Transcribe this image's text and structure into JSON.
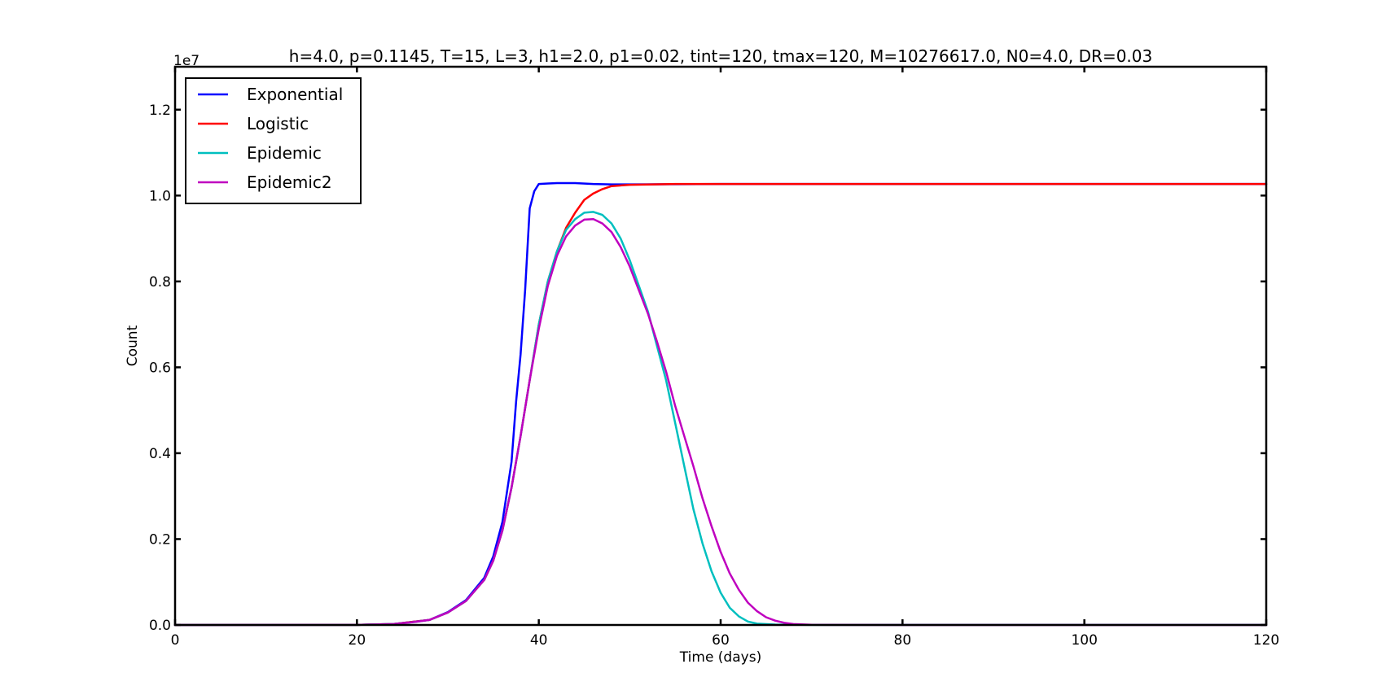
{
  "chart_data": {
    "type": "line",
    "title": "h=4.0, p=0.1145, T=15, L=3, h1=2.0, p1=0.02, tint=120, tmax=120, M=10276617.0, N0=4.0, DR=0.03",
    "xlabel": "Time (days)",
    "ylabel": "Count",
    "y_offset_label": "1e7",
    "xlim": [
      0,
      120
    ],
    "ylim": [
      0,
      1.3
    ],
    "x_ticks": [
      0,
      20,
      40,
      60,
      80,
      100,
      120
    ],
    "x_tick_labels": [
      "0",
      "20",
      "40",
      "60",
      "80",
      "100",
      "120"
    ],
    "y_ticks": [
      0.0,
      0.2,
      0.4,
      0.6,
      0.8,
      1.0,
      1.2
    ],
    "y_tick_labels": [
      "0.0",
      "0.2",
      "0.4",
      "0.6",
      "0.8",
      "1.0",
      "1.2"
    ],
    "grid": false,
    "legend_position": "top-left",
    "series": [
      {
        "name": "Exponential",
        "color": "#0000ff",
        "x": [
          0,
          20,
          24,
          28,
          30,
          32,
          34,
          35,
          36,
          37,
          37.5,
          38,
          38.5,
          39,
          39.5,
          40,
          41,
          42,
          44,
          46,
          48,
          50,
          60,
          80,
          100,
          120
        ],
        "y": [
          0,
          0.0002,
          0.002,
          0.012,
          0.03,
          0.058,
          0.11,
          0.16,
          0.24,
          0.38,
          0.52,
          0.63,
          0.78,
          0.97,
          1.01,
          1.027,
          1.028,
          1.029,
          1.029,
          1.027,
          1.026,
          1.026,
          1.027,
          1.027,
          1.027,
          1.027
        ]
      },
      {
        "name": "Logistic",
        "color": "#ff0000",
        "x": [
          0,
          20,
          24,
          28,
          30,
          32,
          34,
          35,
          36,
          37,
          38,
          39,
          40,
          41,
          42,
          43,
          44,
          45,
          46,
          47,
          48,
          50,
          55,
          60,
          80,
          100,
          120
        ],
        "y": [
          0,
          0.0002,
          0.002,
          0.012,
          0.029,
          0.056,
          0.105,
          0.15,
          0.22,
          0.32,
          0.44,
          0.57,
          0.7,
          0.8,
          0.87,
          0.925,
          0.96,
          0.99,
          1.005,
          1.015,
          1.022,
          1.025,
          1.027,
          1.027,
          1.027,
          1.027,
          1.027
        ]
      },
      {
        "name": "Epidemic",
        "color": "#00bfbf",
        "x": [
          0,
          20,
          24,
          26,
          28,
          30,
          32,
          34,
          35,
          36,
          37,
          38,
          39,
          40,
          41,
          42,
          43,
          44,
          45,
          46,
          47,
          48,
          49,
          50,
          51,
          52,
          53,
          54,
          55,
          56,
          57,
          58,
          59,
          60,
          61,
          62,
          63,
          64,
          66,
          70,
          80,
          100,
          120
        ],
        "y": [
          0,
          0.0002,
          0.002,
          0.006,
          0.012,
          0.029,
          0.056,
          0.105,
          0.15,
          0.22,
          0.32,
          0.44,
          0.57,
          0.7,
          0.8,
          0.87,
          0.92,
          0.945,
          0.96,
          0.962,
          0.955,
          0.935,
          0.9,
          0.85,
          0.79,
          0.73,
          0.65,
          0.57,
          0.47,
          0.37,
          0.27,
          0.19,
          0.125,
          0.075,
          0.04,
          0.02,
          0.008,
          0.003,
          0.001,
          0.0002,
          0.0001,
          0.0001,
          0.0001
        ]
      },
      {
        "name": "Epidemic2",
        "color": "#bf00bf",
        "x": [
          0,
          20,
          24,
          26,
          28,
          30,
          32,
          34,
          35,
          36,
          37,
          38,
          39,
          40,
          41,
          42,
          43,
          44,
          45,
          46,
          47,
          48,
          49,
          50,
          51,
          52,
          53,
          54,
          55,
          56,
          57,
          58,
          59,
          60,
          61,
          62,
          63,
          64,
          65,
          66,
          67,
          68,
          70,
          72,
          80,
          100,
          120
        ],
        "y": [
          0,
          0.0002,
          0.002,
          0.006,
          0.012,
          0.029,
          0.056,
          0.105,
          0.15,
          0.22,
          0.32,
          0.44,
          0.57,
          0.69,
          0.79,
          0.86,
          0.905,
          0.93,
          0.944,
          0.945,
          0.935,
          0.915,
          0.88,
          0.835,
          0.78,
          0.725,
          0.66,
          0.59,
          0.51,
          0.44,
          0.37,
          0.295,
          0.23,
          0.17,
          0.12,
          0.082,
          0.052,
          0.032,
          0.018,
          0.01,
          0.005,
          0.002,
          0.0005,
          0.0001,
          0,
          0,
          0
        ]
      }
    ]
  }
}
